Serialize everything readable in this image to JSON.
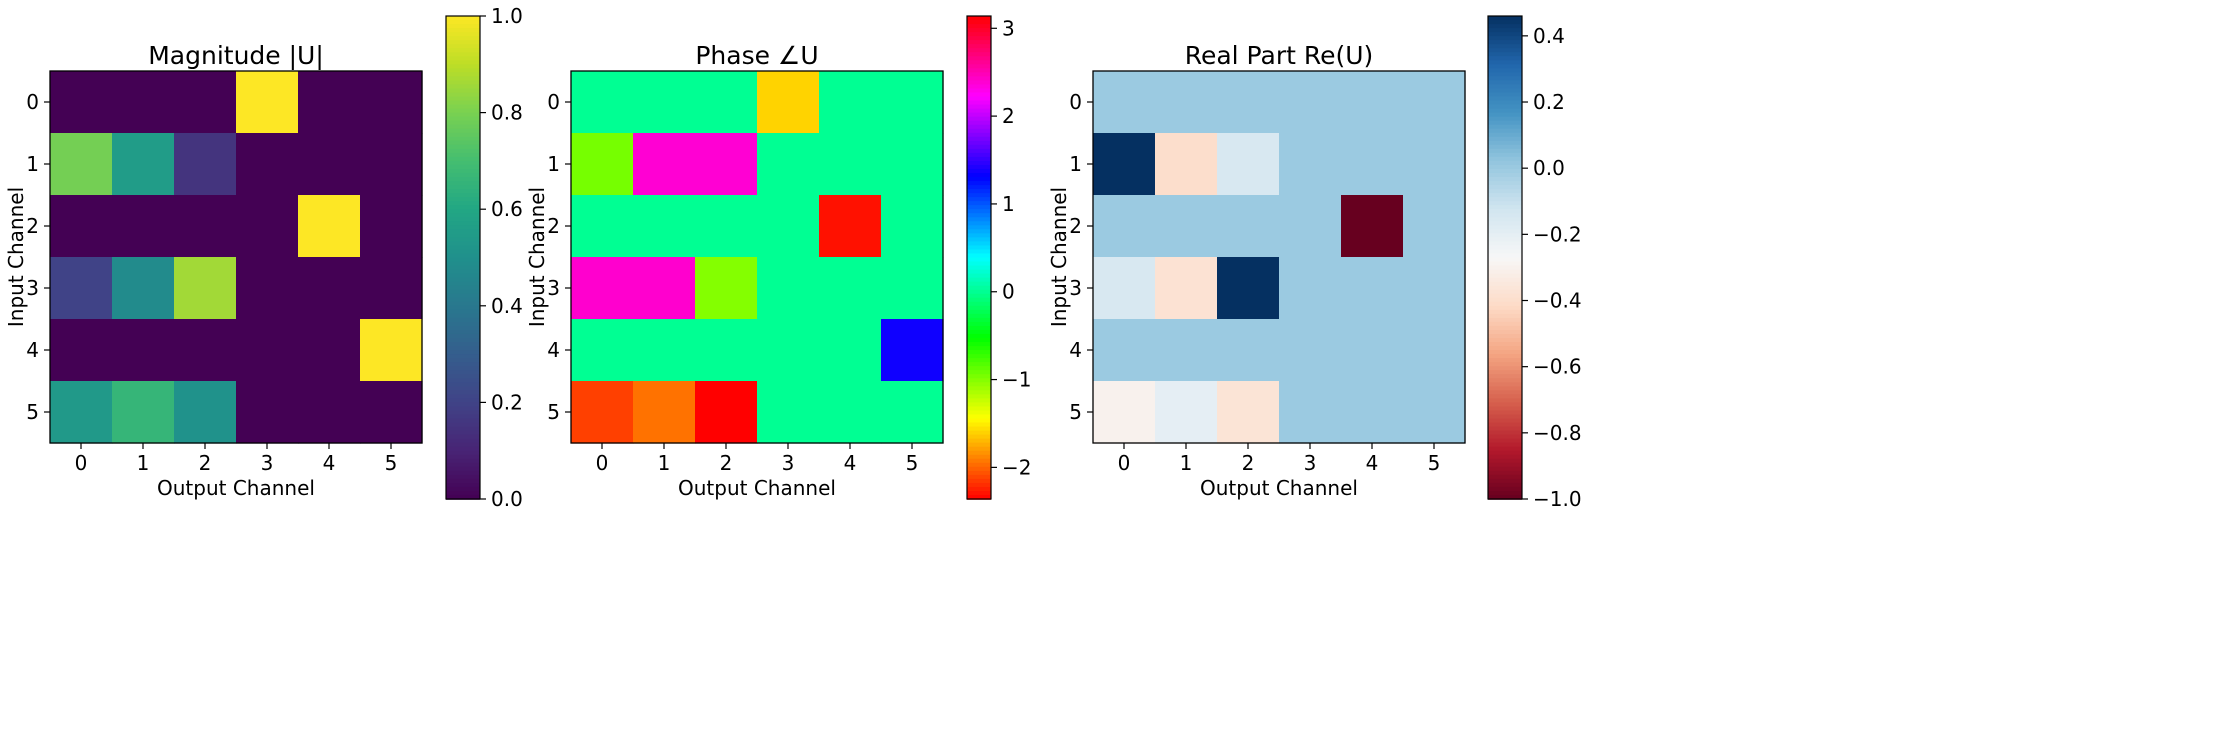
{
  "chart_data": [
    {
      "type": "heatmap",
      "title": "Magnitude |U|",
      "xlabel": "Output Channel",
      "ylabel": "Input Channel",
      "x_ticks": [
        "0",
        "1",
        "2",
        "3",
        "4",
        "5"
      ],
      "y_ticks": [
        "0",
        "1",
        "2",
        "3",
        "4",
        "5"
      ],
      "colormap": "viridis",
      "vmin": 0.0,
      "vmax": 1.0,
      "colorbar_ticks": [
        0.0,
        0.2,
        0.4,
        0.6,
        0.8,
        1.0
      ],
      "colorbar_labels": [
        "0.0",
        "0.2",
        "0.4",
        "0.6",
        "0.8",
        "1.0"
      ],
      "values": [
        [
          0.0,
          0.0,
          0.0,
          1.0,
          0.0,
          0.0
        ],
        [
          0.79,
          0.55,
          0.15,
          0.0,
          0.0,
          0.0
        ],
        [
          0.0,
          0.0,
          0.0,
          0.0,
          1.0,
          0.0
        ],
        [
          0.2,
          0.48,
          0.86,
          0.0,
          0.0,
          0.0
        ],
        [
          0.0,
          0.0,
          0.0,
          0.0,
          0.0,
          1.0
        ],
        [
          0.54,
          0.66,
          0.51,
          0.0,
          0.0,
          0.0
        ]
      ]
    },
    {
      "type": "heatmap",
      "title": "Phase ∠U",
      "xlabel": "Output Channel",
      "ylabel": "Input Channel",
      "x_ticks": [
        "0",
        "1",
        "2",
        "3",
        "4",
        "5"
      ],
      "y_ticks": [
        "0",
        "1",
        "2",
        "3",
        "4",
        "5"
      ],
      "colormap": "hsv",
      "vmin": -2.36,
      "vmax": 3.14,
      "colorbar_ticks": [
        -2,
        -1,
        0,
        1,
        2,
        3
      ],
      "colorbar_labels": [
        "−2",
        "−1",
        "0",
        "1",
        "2",
        "3"
      ],
      "values": [
        [
          0.0,
          0.0,
          0.0,
          -1.6,
          0.0,
          0.0
        ],
        [
          -0.95,
          2.38,
          2.38,
          0.0,
          0.0,
          0.0
        ],
        [
          0.0,
          0.0,
          0.0,
          0.0,
          -2.3,
          0.0
        ],
        [
          2.4,
          2.4,
          -1.0,
          0.0,
          0.0,
          0.0
        ],
        [
          0.0,
          0.0,
          0.0,
          0.0,
          0.0,
          1.36
        ],
        [
          -2.13,
          -1.95,
          -2.36,
          0.0,
          0.0,
          0.0
        ]
      ]
    },
    {
      "type": "heatmap",
      "title": "Real Part Re(U)",
      "xlabel": "Output Channel",
      "ylabel": "Input Channel",
      "x_ticks": [
        "0",
        "1",
        "2",
        "3",
        "4",
        "5"
      ],
      "y_ticks": [
        "0",
        "1",
        "2",
        "3",
        "4",
        "5"
      ],
      "colormap": "RdBu",
      "vmin": -1.0,
      "vmax": 0.46,
      "colorbar_ticks": [
        -1.0,
        -0.8,
        -0.6,
        -0.4,
        -0.2,
        0.0,
        0.2,
        0.4
      ],
      "colorbar_labels": [
        "−1.0",
        "−0.8",
        "−0.6",
        "−0.4",
        "−0.2",
        "0.0",
        "0.2",
        "0.4"
      ],
      "values": [
        [
          0.0,
          0.0,
          0.0,
          0.0,
          0.0,
          0.0
        ],
        [
          0.46,
          -0.4,
          -0.15,
          0.0,
          0.0,
          0.0
        ],
        [
          0.0,
          0.0,
          0.0,
          0.0,
          -1.0,
          0.0
        ],
        [
          -0.15,
          -0.38,
          0.46,
          0.0,
          0.0,
          0.0
        ],
        [
          0.0,
          0.0,
          0.0,
          0.0,
          0.0,
          0.0
        ],
        [
          -0.3,
          -0.2,
          -0.37,
          0.0,
          0.0,
          0.0
        ]
      ]
    }
  ]
}
